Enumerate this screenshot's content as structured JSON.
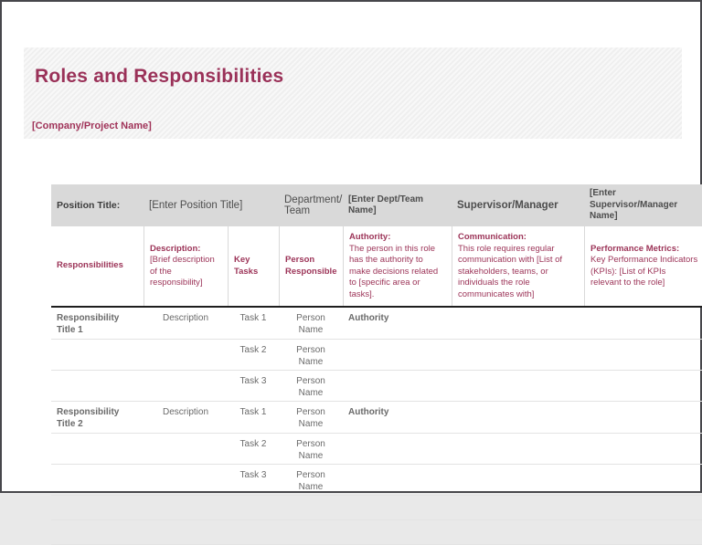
{
  "window": {
    "frame_color": "#47474b"
  },
  "header": {
    "title": "Roles and Responsibilities",
    "company_placeholder": "[Company/Project Name]",
    "accent_color": "#9c3458"
  },
  "info_bar": {
    "background": "#d9d9d9",
    "position_label": "Position Title:",
    "position_value": "[Enter Position Title]",
    "department_label": "Department/ Team",
    "department_value": "[Enter Dept/Team Name]",
    "supervisor_label": "Supervisor/Manager",
    "supervisor_value": "[Enter Supervisor/Manager Name]"
  },
  "columns": {
    "responsibilities": "Responsibilities",
    "description_lead": "Description:",
    "description_rest": " [Brief description of the responsibility]",
    "key_tasks": "Key Tasks",
    "person_responsible": "Person Responsible",
    "authority_lead": "Authority:",
    "authority_rest": " The person in this role has the authority to make decisions related to [specific area or tasks].",
    "communication_lead": "Communication:",
    "communication_rest": " This role requires regular communication with [List of stakeholders, teams, or individuals the role communicates with]",
    "metrics_lead": "Performance Metrics:",
    "metrics_rest": " Key Performance Indicators (KPIs): [List of KPIs relevant to the role]"
  },
  "rows": [
    {
      "title": "Responsibility Title 1",
      "description": "Description",
      "task": "Task 1",
      "person": "Person Name",
      "authority": "Authority"
    },
    {
      "title": "",
      "description": "",
      "task": "Task 2",
      "person": "Person Name",
      "authority": ""
    },
    {
      "title": "",
      "description": "",
      "task": "Task 3",
      "person": "Person Name",
      "authority": ""
    },
    {
      "title": "Responsibility Title 2",
      "description": "Description",
      "task": "Task 1",
      "person": "Person Name",
      "authority": "Authority"
    },
    {
      "title": "",
      "description": "",
      "task": "Task 2",
      "person": "Person Name",
      "authority": ""
    },
    {
      "title": "",
      "description": "",
      "task": "Task 3",
      "person": "Person Name",
      "authority": ""
    }
  ]
}
